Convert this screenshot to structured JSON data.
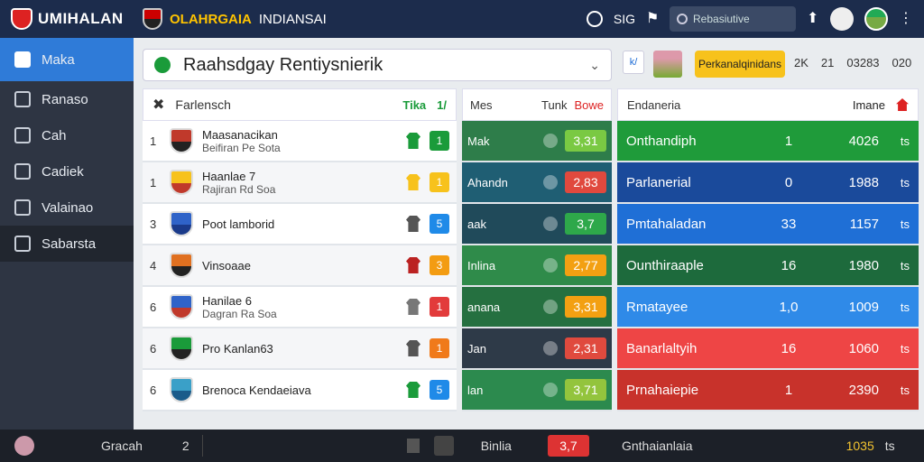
{
  "topbar": {
    "brand": "UMIHALAN",
    "club_yellow": "OLAHRGAIA",
    "club_white": "INDIANSAI",
    "clock_text": "SIG",
    "search_placeholder": "Rebasiutive"
  },
  "sidebar": {
    "items": [
      {
        "label": "Maka",
        "icon": "home-icon"
      },
      {
        "label": "Ranaso",
        "icon": "squad-icon"
      },
      {
        "label": "Cah",
        "icon": "tactics-icon"
      },
      {
        "label": "Cadiek",
        "icon": "training-icon"
      },
      {
        "label": "Valainao",
        "icon": "scouting-icon"
      },
      {
        "label": "Sabarsta",
        "icon": "finance-icon"
      }
    ]
  },
  "title": {
    "text": "Raahsdgay Rentiysnierik"
  },
  "header_extras": {
    "k_badge": "k/",
    "yellow_pill": "Perkanalqinidans",
    "stat_1": "2K",
    "stat_2": "21",
    "stat_3": "03283",
    "stat_4": "020"
  },
  "panel_a": {
    "title": "Farlensch",
    "tag_1": "Tika",
    "tag_2": "1/",
    "rows": [
      {
        "rank": "1",
        "name": "Maasanacikan",
        "sub": "Beifiran Pe Sota",
        "crest": [
          "#c0392b",
          "#222"
        ],
        "kit": "#1a9b3a",
        "tag": "1",
        "tag_color": "#1a9b3a"
      },
      {
        "rank": "1",
        "name": "Haanlae 7",
        "sub": "Rajiran Rd Soa",
        "crest": [
          "#f7c21c",
          "#c0392b"
        ],
        "kit": "#f7c21c",
        "tag": "1",
        "tag_color": "#f7c21c"
      },
      {
        "rank": "3",
        "name": "Poot lamborid",
        "sub": "",
        "crest": [
          "#2f63c8",
          "#1a3a8a"
        ],
        "kit": "#555",
        "tag": "5",
        "tag_color": "#1f8ae8"
      },
      {
        "rank": "4",
        "name": "Vinsoaae",
        "sub": "",
        "crest": [
          "#e07020",
          "#222"
        ],
        "kit": "#b22",
        "tag": "3",
        "tag_color": "#f39c12"
      },
      {
        "rank": "6",
        "name": "Hanilae 6",
        "sub": "Dagran Ra Soa",
        "crest": [
          "#2f63c8",
          "#c0392b"
        ],
        "kit": "#777",
        "tag": "1",
        "tag_color": "#e23b3b"
      },
      {
        "rank": "6",
        "name": "Pro Kanlan63",
        "sub": "",
        "crest": [
          "#1a9b3a",
          "#222"
        ],
        "kit": "#555",
        "tag": "1",
        "tag_color": "#f07a1a"
      },
      {
        "rank": "6",
        "name": "Brenoca Kendaeiava",
        "sub": "",
        "crest": [
          "#3aa0c8",
          "#1a5b8a"
        ],
        "kit": "#1a9b3a",
        "tag": "5",
        "tag_color": "#1f8ae8"
      }
    ]
  },
  "panel_b": {
    "title": "Mes",
    "tag_1": "Tunk",
    "tag_2": "Bowe",
    "rows": [
      {
        "opp": "Mak",
        "bg": "#2e7d4a",
        "score": "3,31",
        "score_color": "#7ac943"
      },
      {
        "opp": "Ahandn",
        "bg": "#1f5e73",
        "score": "2,83",
        "score_color": "#e0493e"
      },
      {
        "opp": "aak",
        "bg": "#204a5a",
        "score": "3,7",
        "score_color": "#2ea84a"
      },
      {
        "opp": "Inlina",
        "bg": "#2f8b4a",
        "score": "2,77",
        "score_color": "#f3a012"
      },
      {
        "opp": "anana",
        "bg": "#257040",
        "score": "3,31",
        "score_color": "#f3a012"
      },
      {
        "opp": "Jan",
        "bg": "#2e3a48",
        "score": "2,31",
        "score_color": "#e04a3e"
      },
      {
        "opp": "lan",
        "bg": "#2c8a4e",
        "score": "3,71",
        "score_color": "#93c43d"
      }
    ]
  },
  "panel_c": {
    "title": "Endaneria",
    "col_label": "Imane",
    "rows": [
      {
        "name": "Onthandiph",
        "val": "1",
        "money": "4026",
        "unit": "ts",
        "bg": "#1f9b3a"
      },
      {
        "name": "Parlanerial",
        "val": "0",
        "money": "1988",
        "unit": "ts",
        "bg": "#1a4a9b"
      },
      {
        "name": "Pmtahaladan",
        "val": "33",
        "money": "1157",
        "unit": "ts",
        "bg": "#1f6fd6"
      },
      {
        "name": "Ounthiraaple",
        "val": "16",
        "money": "1980",
        "unit": "ts",
        "bg": "#1d6a3c"
      },
      {
        "name": "Rmatayee",
        "val": "1,0",
        "money": "1009",
        "unit": "ts",
        "bg": "#2f8ae8"
      },
      {
        "name": "Banarlaltyih",
        "val": "16",
        "money": "1060",
        "unit": "ts",
        "bg": "#ee4545"
      },
      {
        "name": "Prnahaiepie",
        "val": "1",
        "money": "2390",
        "unit": "ts",
        "bg": "#c8322b"
      }
    ]
  },
  "bottombar": {
    "name": "Gracah",
    "tool": "2",
    "label": "Binlia",
    "score": "3,7",
    "manager": "Gnthaianlaia",
    "money": "1035",
    "unit": "ts"
  }
}
